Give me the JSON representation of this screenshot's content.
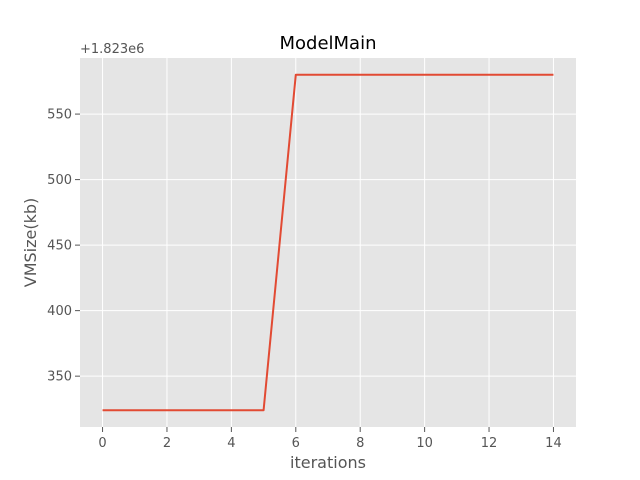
{
  "chart_data": {
    "type": "line",
    "title": "ModelMain",
    "xlabel": "iterations",
    "ylabel": "VMSize(kb)",
    "y_offset_label": "+1.823e6",
    "x": [
      0,
      1,
      2,
      3,
      4,
      5,
      6,
      7,
      8,
      9,
      10,
      11,
      12,
      13,
      14
    ],
    "series": [
      {
        "values": [
          324,
          324,
          324,
          324,
          324,
          324,
          580,
          580,
          580,
          580,
          580,
          580,
          580,
          580,
          580
        ]
      }
    ],
    "xlim": [
      -0.7,
      14.7
    ],
    "ylim": [
      311.2,
      592.8
    ],
    "xticks": [
      0,
      2,
      4,
      6,
      8,
      10,
      12,
      14
    ],
    "yticks": [
      350,
      400,
      450,
      500,
      550
    ],
    "grid": true,
    "legend": "none",
    "colors": {
      "line": "#e24a33",
      "plot_background": "#e5e5e5",
      "grid": "#ffffff",
      "tick": "#555555"
    }
  }
}
